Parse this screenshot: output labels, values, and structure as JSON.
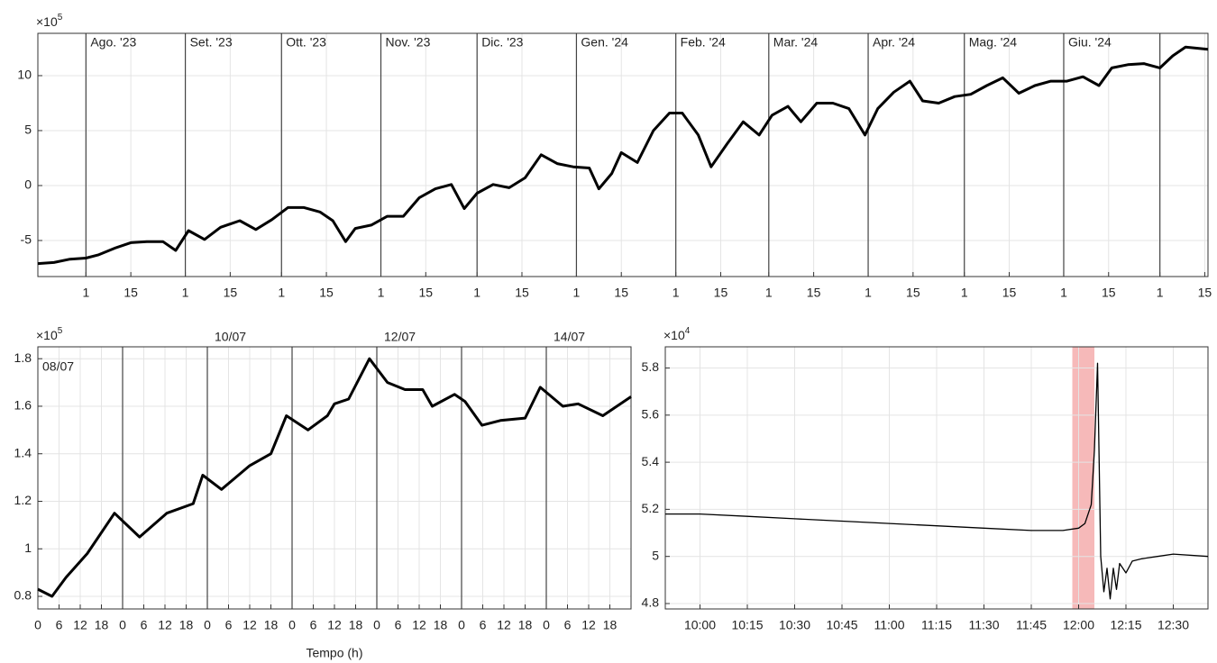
{
  "chart_data": [
    {
      "type": "line",
      "y_multiplier": "×10",
      "y_exponent": "5",
      "color": "#000000",
      "grid": true,
      "ylim": [
        -8.28,
        13.85
      ],
      "yticks": [
        -5,
        0,
        5,
        10
      ],
      "xlim": [
        "2023-07-17",
        "2024-07-16"
      ],
      "xticks": [
        {
          "value": "2023-08-01",
          "label": "1"
        },
        {
          "value": "2023-08-15",
          "label": "15"
        },
        {
          "value": "2023-09-01",
          "label": "1"
        },
        {
          "value": "2023-09-15",
          "label": "15"
        },
        {
          "value": "2023-10-01",
          "label": "1"
        },
        {
          "value": "2023-10-15",
          "label": "15"
        },
        {
          "value": "2023-11-01",
          "label": "1"
        },
        {
          "value": "2023-11-15",
          "label": "15"
        },
        {
          "value": "2023-12-01",
          "label": "1"
        },
        {
          "value": "2023-12-15",
          "label": "15"
        },
        {
          "value": "2024-01-01",
          "label": "1"
        },
        {
          "value": "2024-01-15",
          "label": "15"
        },
        {
          "value": "2024-02-01",
          "label": "1"
        },
        {
          "value": "2024-02-15",
          "label": "15"
        },
        {
          "value": "2024-03-01",
          "label": "1"
        },
        {
          "value": "2024-03-15",
          "label": "15"
        },
        {
          "value": "2024-04-01",
          "label": "1"
        },
        {
          "value": "2024-04-15",
          "label": "15"
        },
        {
          "value": "2024-05-01",
          "label": "1"
        },
        {
          "value": "2024-05-15",
          "label": "15"
        },
        {
          "value": "2024-06-01",
          "label": "1"
        },
        {
          "value": "2024-06-15",
          "label": "15"
        },
        {
          "value": "2024-07-01",
          "label": "1"
        },
        {
          "value": "2024-07-15",
          "label": "15"
        }
      ],
      "period_labels": [
        {
          "value": "2023-08-01",
          "label": "Ago. '23"
        },
        {
          "value": "2023-09-01",
          "label": "Set. '23"
        },
        {
          "value": "2023-10-01",
          "label": "Ott. '23"
        },
        {
          "value": "2023-11-01",
          "label": "Nov. '23"
        },
        {
          "value": "2023-12-01",
          "label": "Dic. '23"
        },
        {
          "value": "2024-01-01",
          "label": "Gen. '24"
        },
        {
          "value": "2024-02-01",
          "label": "Feb. '24"
        },
        {
          "value": "2024-03-01",
          "label": "Mar. '24"
        },
        {
          "value": "2024-04-01",
          "label": "Apr. '24"
        },
        {
          "value": "2024-05-01",
          "label": "Mag. '24"
        },
        {
          "value": "2024-06-01",
          "label": "Giu. '24"
        },
        {
          "value": "2024-07-01",
          "label": null
        }
      ],
      "x": [
        "2023-07-17",
        "2023-07-22",
        "2023-07-27",
        "2023-08-01",
        "2023-08-05",
        "2023-08-10",
        "2023-08-15",
        "2023-08-20",
        "2023-08-25",
        "2023-08-29",
        "2023-09-02",
        "2023-09-07",
        "2023-09-12",
        "2023-09-18",
        "2023-09-23",
        "2023-09-28",
        "2023-10-03",
        "2023-10-08",
        "2023-10-13",
        "2023-10-17",
        "2023-10-21",
        "2023-10-24",
        "2023-10-29",
        "2023-11-03",
        "2023-11-08",
        "2023-11-13",
        "2023-11-18",
        "2023-11-23",
        "2023-11-27",
        "2023-12-01",
        "2023-12-06",
        "2023-12-11",
        "2023-12-16",
        "2023-12-21",
        "2023-12-26",
        "2023-12-31",
        "2024-01-05",
        "2024-01-08",
        "2024-01-12",
        "2024-01-15",
        "2024-01-20",
        "2024-01-25",
        "2024-01-30",
        "2024-02-03",
        "2024-02-08",
        "2024-02-12",
        "2024-02-17",
        "2024-02-22",
        "2024-02-27",
        "2024-03-02",
        "2024-03-07",
        "2024-03-11",
        "2024-03-16",
        "2024-03-21",
        "2024-03-26",
        "2024-03-31",
        "2024-04-04",
        "2024-04-09",
        "2024-04-14",
        "2024-04-18",
        "2024-04-23",
        "2024-04-28",
        "2024-05-03",
        "2024-05-08",
        "2024-05-13",
        "2024-05-18",
        "2024-05-23",
        "2024-05-28",
        "2024-06-02",
        "2024-06-07",
        "2024-06-12",
        "2024-06-16",
        "2024-06-21",
        "2024-06-26",
        "2024-07-01",
        "2024-07-05",
        "2024-07-09",
        "2024-07-16"
      ],
      "values": [
        -7.1,
        -7.0,
        -6.7,
        -6.6,
        -6.3,
        -5.7,
        -5.2,
        -5.1,
        -5.1,
        -5.9,
        -4.1,
        -4.9,
        -3.8,
        -3.2,
        -4.0,
        -3.1,
        -2.0,
        -2.0,
        -2.4,
        -3.2,
        -5.1,
        -3.9,
        -3.6,
        -2.8,
        -2.8,
        -1.1,
        -0.3,
        0.1,
        -2.1,
        -0.7,
        0.1,
        -0.2,
        0.7,
        2.8,
        2.0,
        1.7,
        1.6,
        -0.3,
        1.1,
        3.0,
        2.1,
        5.0,
        6.6,
        6.6,
        4.6,
        1.7,
        3.8,
        5.8,
        4.6,
        6.4,
        7.2,
        5.8,
        7.5,
        7.5,
        7.0,
        4.6,
        7.0,
        8.5,
        9.5,
        7.7,
        7.5,
        8.1,
        8.3,
        9.1,
        9.8,
        8.4,
        9.1,
        9.5,
        9.5,
        9.9,
        9.1,
        10.7,
        11.0,
        11.1,
        10.7,
        11.8,
        12.6,
        12.4
      ]
    },
    {
      "type": "line",
      "y_multiplier": "×10",
      "y_exponent": "5",
      "color": "#000000",
      "grid": true,
      "x_label": "Tempo (h)",
      "ylim": [
        0.747,
        1.85
      ],
      "yticks": [
        0.8,
        1,
        1.2,
        1.4,
        1.6,
        1.8
      ],
      "xlim": [
        0,
        168
      ],
      "xticks": [
        0,
        6,
        12,
        18,
        {
          "value": 24,
          "label": "0"
        },
        {
          "value": 30,
          "label": "6"
        },
        {
          "value": 36,
          "label": "12"
        },
        {
          "value": 42,
          "label": "18"
        },
        {
          "value": 48,
          "label": "0"
        },
        {
          "value": 54,
          "label": "6"
        },
        {
          "value": 60,
          "label": "12"
        },
        {
          "value": 66,
          "label": "18"
        },
        {
          "value": 72,
          "label": "0"
        },
        {
          "value": 78,
          "label": "6"
        },
        {
          "value": 84,
          "label": "12"
        },
        {
          "value": 90,
          "label": "18"
        },
        {
          "value": 96,
          "label": "0"
        },
        {
          "value": 102,
          "label": "6"
        },
        {
          "value": 108,
          "label": "12"
        },
        {
          "value": 114,
          "label": "18"
        },
        {
          "value": 120,
          "label": "0"
        },
        {
          "value": 126,
          "label": "6"
        },
        {
          "value": 132,
          "label": "12"
        },
        {
          "value": 138,
          "label": "18"
        },
        {
          "value": 144,
          "label": "0"
        },
        {
          "value": 150,
          "label": "6"
        },
        {
          "value": 156,
          "label": "12"
        },
        {
          "value": 162,
          "label": "18"
        }
      ],
      "period_labels": [
        {
          "value": 0,
          "label": "08/07"
        },
        {
          "value": 24,
          "label": null
        },
        {
          "value": 48,
          "label": "10/07"
        },
        {
          "value": 72,
          "label": null
        },
        {
          "value": 96,
          "label": "12/07"
        },
        {
          "value": 120,
          "label": null
        },
        {
          "value": 144,
          "label": "14/07"
        }
      ],
      "x": [
        0,
        4,
        8,
        14,
        21.7,
        28.8,
        36.5,
        44,
        46.7,
        52,
        60,
        66,
        70.4,
        76.5,
        82,
        84,
        88,
        93.9,
        99,
        104,
        109,
        111.7,
        118,
        121,
        125.8,
        131,
        138,
        142.3,
        148.7,
        153,
        160,
        168
      ],
      "values": [
        0.83,
        0.8,
        0.88,
        0.98,
        1.15,
        1.05,
        1.15,
        1.19,
        1.31,
        1.25,
        1.35,
        1.4,
        1.56,
        1.5,
        1.56,
        1.61,
        1.63,
        1.8,
        1.7,
        1.67,
        1.67,
        1.6,
        1.65,
        1.62,
        1.52,
        1.54,
        1.55,
        1.68,
        1.6,
        1.61,
        1.56,
        1.64
      ]
    },
    {
      "type": "line",
      "y_multiplier": "×10",
      "y_exponent": "4",
      "color": "#000000",
      "grid": true,
      "ylim": [
        4.777,
        5.89
      ],
      "yticks": [
        4.8,
        5,
        5.2,
        5.4,
        5.6,
        5.8
      ],
      "xlim": [
        "09:49",
        "12:41"
      ],
      "xticks": [
        "10:00",
        "10:15",
        "10:30",
        "10:45",
        "11:00",
        "11:15",
        "11:30",
        "11:45",
        "12:00",
        "12:15",
        "12:30"
      ],
      "highlight": {
        "x": [
          "11:58",
          "12:05"
        ],
        "color": "#f6b9b9"
      },
      "x": [
        "09:49",
        "10:00",
        "10:15",
        "10:30",
        "10:45",
        "11:00",
        "11:15",
        "11:30",
        "11:45",
        "11:55",
        "12:00",
        "12:02",
        "12:04",
        "12:05",
        "12:06",
        "12:07",
        "12:08",
        "12:09",
        "12:10",
        "12:11",
        "12:12",
        "12:13",
        "12:15",
        "12:17",
        "12:20",
        "12:25",
        "12:30",
        "12:41"
      ],
      "values": [
        5.18,
        5.18,
        5.17,
        5.16,
        5.15,
        5.14,
        5.13,
        5.12,
        5.11,
        5.11,
        5.12,
        5.14,
        5.22,
        5.45,
        5.82,
        5.0,
        4.85,
        4.95,
        4.82,
        4.95,
        4.86,
        4.97,
        4.93,
        4.98,
        4.99,
        5.0,
        5.01,
        5.0
      ]
    }
  ]
}
